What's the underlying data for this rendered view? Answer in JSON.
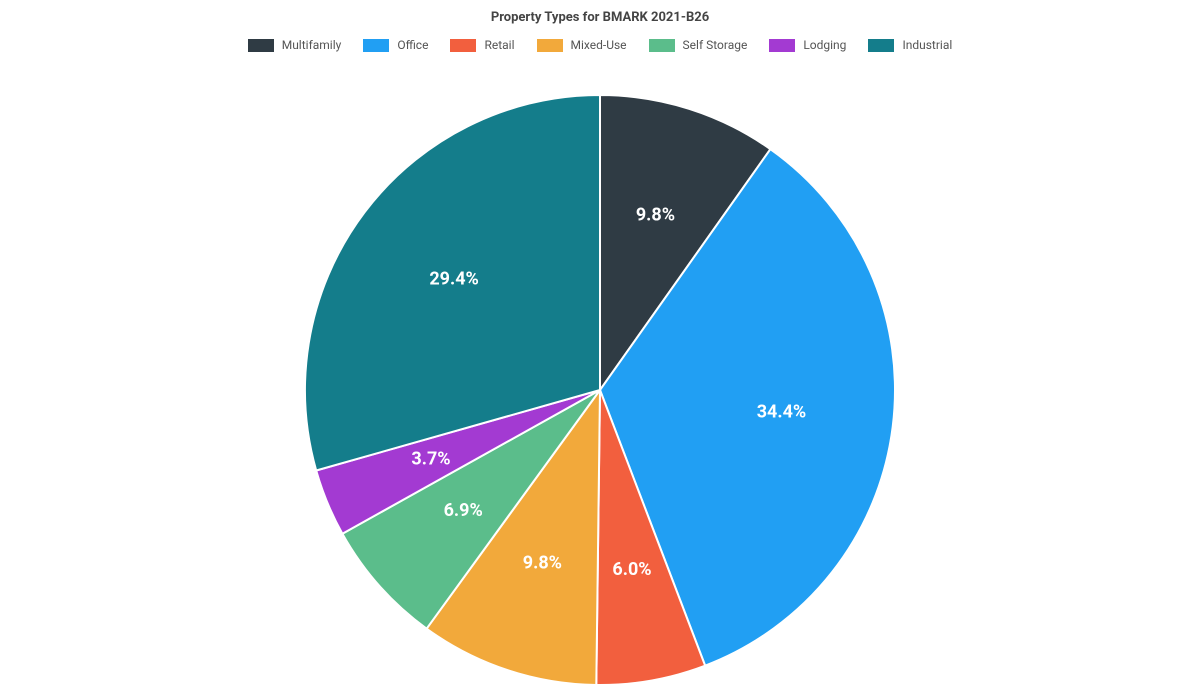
{
  "chart": {
    "type": "pie",
    "title": "Property Types for BMARK 2021-B26",
    "title_fontsize": 13,
    "title_color": "#444444",
    "background_color": "#ffffff",
    "slice_border_color": "#ffffff",
    "slice_border_width": 2,
    "label_fontsize": 18,
    "label_color": "#ffffff",
    "label_fontweight": 700,
    "legend_fontsize": 12,
    "legend_text_color": "#555555",
    "legend_swatch_width": 26,
    "legend_swatch_height": 13,
    "radius": 295,
    "label_radius_ratio": 0.62,
    "start_angle_deg": -90,
    "slices": [
      {
        "name": "Multifamily",
        "value": 9.8,
        "color": "#2f3b44",
        "label": "9.8%"
      },
      {
        "name": "Office",
        "value": 34.4,
        "color": "#219ff3",
        "label": "34.4%"
      },
      {
        "name": "Retail",
        "value": 6.0,
        "color": "#f25f3e",
        "label": "6.0%"
      },
      {
        "name": "Mixed-Use",
        "value": 9.8,
        "color": "#f2a93b",
        "label": "9.8%"
      },
      {
        "name": "Self Storage",
        "value": 6.9,
        "color": "#5bbd8b",
        "label": "6.9%"
      },
      {
        "name": "Lodging",
        "value": 3.7,
        "color": "#a33ad2",
        "label": "3.7%"
      },
      {
        "name": "Industrial",
        "value": 29.4,
        "color": "#147d8b",
        "label": "29.4%"
      }
    ]
  }
}
